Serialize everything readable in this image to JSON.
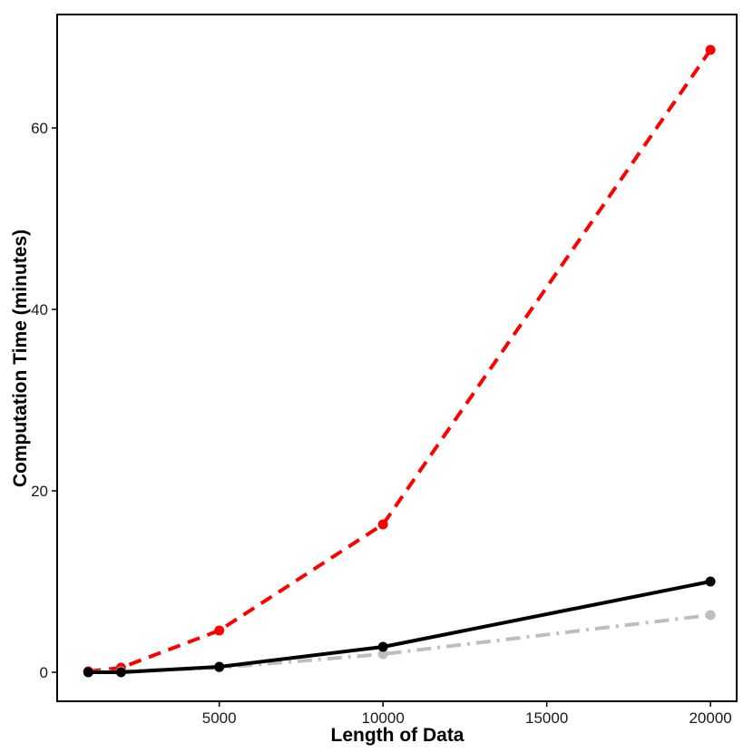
{
  "chart_data": {
    "type": "line",
    "title": "",
    "xlabel": "Length of Data",
    "ylabel": "Computation Time (minutes)",
    "xlim": [
      50,
      20800
    ],
    "ylim": [
      -3.2,
      72.5
    ],
    "xticks": [
      5000,
      10000,
      15000,
      20000
    ],
    "yticks": [
      0,
      20,
      40,
      60
    ],
    "grid": false,
    "legend": "none",
    "series": [
      {
        "x": [
          1000,
          2000,
          5000,
          10000,
          20000
        ],
        "values": [
          0.1,
          0.5,
          4.6,
          16.3,
          68.6
        ],
        "color": "#ff0000",
        "linestyle": "dashed"
      },
      {
        "x": [
          1000,
          2000,
          5000,
          10000,
          20000
        ],
        "values": [
          0.0,
          0.1,
          0.5,
          2.0,
          6.3
        ],
        "color": "#bebebe",
        "linestyle": "dashdot"
      },
      {
        "x": [
          1000,
          2000,
          5000,
          10000,
          20000
        ],
        "values": [
          0.0,
          0.0,
          0.6,
          2.8,
          10.0
        ],
        "color": "#000000",
        "linestyle": "solid"
      }
    ]
  }
}
